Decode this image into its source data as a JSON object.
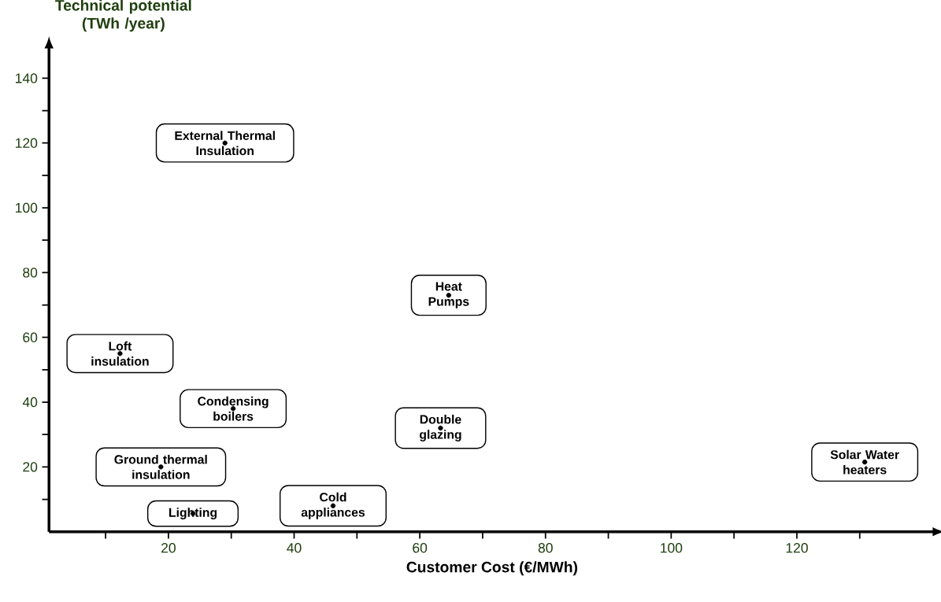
{
  "chart_data": {
    "type": "scatter",
    "xlabel": "Customer Cost   (€/MWh)",
    "ylabel": "Technical potential (TWh /year)",
    "xlim": [
      1,
      142
    ],
    "ylim": [
      0,
      150
    ],
    "xticks": [
      {
        "value": 10,
        "label": null
      },
      20,
      {
        "value": 30,
        "label": null
      },
      40,
      {
        "value": 50,
        "label": null
      },
      60,
      {
        "value": 70,
        "label": null
      },
      80,
      {
        "value": 90,
        "label": null
      },
      100,
      {
        "value": 110,
        "label": null
      },
      120,
      {
        "value": 130,
        "label": null
      }
    ],
    "yticks": [
      {
        "value": 10,
        "label": null
      },
      20,
      {
        "value": 30,
        "label": null
      },
      40,
      {
        "value": 50,
        "label": null
      },
      60,
      {
        "value": 70,
        "label": null
      },
      80,
      {
        "value": 90,
        "label": null
      },
      100,
      {
        "value": 110,
        "label": null
      },
      120,
      {
        "value": 130,
        "label": null
      },
      140
    ],
    "marker": "circle",
    "color": "#000000",
    "x": [
      29,
      64.6,
      12.3,
      30.3,
      63.3,
      18.8,
      23.9,
      46.2,
      130.8
    ],
    "values": [
      120,
      73,
      55,
      38,
      32,
      20,
      5.6,
      8,
      21.5
    ],
    "annotations": [
      {
        "text": "External Thermal Insulation",
        "x": 29,
        "y": 120
      },
      {
        "text": "Heat Pumps",
        "x": 64.6,
        "y": 73
      },
      {
        "text": "Loft insulation",
        "x": 12.3,
        "y": 55
      },
      {
        "text": "Condensing boilers",
        "x": 30.3,
        "y": 38
      },
      {
        "text": "Double glazing",
        "x": 63.3,
        "y": 32
      },
      {
        "text": "Ground thermal insulation",
        "x": 18.8,
        "y": 20
      },
      {
        "text": "Lighting",
        "x": 23.9,
        "y": 5.6
      },
      {
        "text": "Cold appliances",
        "x": 46.2,
        "y": 8
      },
      {
        "text": "Solar Water heaters",
        "x": 130.8,
        "y": 21.5
      }
    ]
  }
}
